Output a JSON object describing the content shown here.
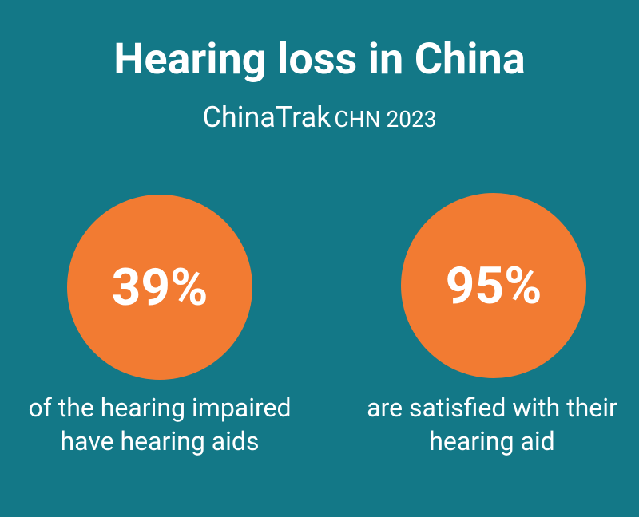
{
  "header": {
    "title": "Hearing loss in China",
    "source": "ChinaTrak",
    "edition": "CHN 2023"
  },
  "stats": [
    {
      "figure": "39%",
      "caption_lines": [
        "of the hearing impaired",
        "have hearing aids"
      ]
    },
    {
      "figure": "95%",
      "caption_lines": [
        "are satisfied with their",
        "hearing aid"
      ]
    }
  ]
}
